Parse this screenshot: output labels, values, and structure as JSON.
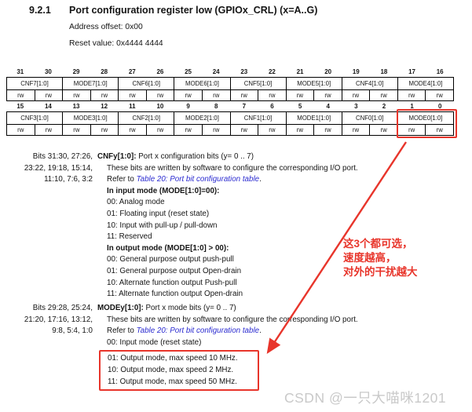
{
  "page": {
    "section_number": "9.2.1",
    "title": "Port configuration register low (GPIOx_CRL) (x=A..G)",
    "address_offset": "Address offset: 0x00",
    "reset_value": "Reset value: 0x4444 4444"
  },
  "colors": {
    "annotation_red": "#e8352b",
    "link_blue": "#2b2bd0",
    "watermark_gray": "#c9c9c9"
  },
  "register_table": {
    "rows": [
      {
        "bits": [
          "31",
          "30",
          "29",
          "28",
          "27",
          "26",
          "25",
          "24",
          "23",
          "22",
          "21",
          "20",
          "19",
          "18",
          "17",
          "16"
        ],
        "fields": [
          "CNF7[1:0]",
          "MODE7[1:0]",
          "CNF6[1:0]",
          "MODE6[1:0]",
          "CNF5[1:0]",
          "MODE5[1:0]",
          "CNF4[1:0]",
          "MODE4[1:0]"
        ],
        "access": [
          "rw",
          "rw",
          "rw",
          "rw",
          "rw",
          "rw",
          "rw",
          "rw",
          "rw",
          "rw",
          "rw",
          "rw",
          "rw",
          "rw",
          "rw",
          "rw"
        ],
        "highlight_field": null
      },
      {
        "bits": [
          "15",
          "14",
          "13",
          "12",
          "11",
          "10",
          "9",
          "8",
          "7",
          "6",
          "5",
          "4",
          "3",
          "2",
          "1",
          "0"
        ],
        "fields": [
          "CNF3[1:0]",
          "MODE3[1:0]",
          "CNF2[1:0]",
          "MODE2[1:0]",
          "CNF1[1:0]",
          "MODE1[1:0]",
          "CNF0[1:0]",
          "MODE0[1:0]"
        ],
        "access": [
          "rw",
          "rw",
          "rw",
          "rw",
          "rw",
          "rw",
          "rw",
          "rw",
          "rw",
          "rw",
          "rw",
          "rw",
          "rw",
          "rw",
          "rw",
          "rw"
        ],
        "highlight_field": 7
      }
    ]
  },
  "descriptions": [
    {
      "bits_label": [
        "Bits 31:30, 27:26,",
        "23:22, 19:18, 15:14,",
        "11:10, 7:6, 3:2"
      ],
      "lines": [
        {
          "indent": 0,
          "parts": [
            {
              "t": "CNFy[1:0]:",
              "s": "b"
            },
            {
              "t": " Port x configuration bits (y= 0 .. 7)",
              "s": "n"
            }
          ]
        },
        {
          "indent": 1,
          "parts": [
            {
              "t": "These bits are written by software to configure the corresponding I/O port.",
              "s": "n"
            }
          ]
        },
        {
          "indent": 1,
          "parts": [
            {
              "t": "Refer to ",
              "s": "n"
            },
            {
              "t": "Table 20: Port bit configuration table",
              "s": "l"
            },
            {
              "t": ".",
              "s": "n"
            }
          ]
        },
        {
          "indent": 1,
          "parts": [
            {
              "t": "In input mode (MODE[1:0]=00):",
              "s": "b"
            }
          ]
        },
        {
          "indent": 1,
          "parts": [
            {
              "t": "00: Analog mode",
              "s": "n"
            }
          ]
        },
        {
          "indent": 1,
          "parts": [
            {
              "t": "01: Floating input (reset state)",
              "s": "n"
            }
          ]
        },
        {
          "indent": 1,
          "parts": [
            {
              "t": "10: Input with pull-up / pull-down",
              "s": "n"
            }
          ]
        },
        {
          "indent": 1,
          "parts": [
            {
              "t": "11: Reserved",
              "s": "n"
            }
          ]
        },
        {
          "indent": 1,
          "parts": [
            {
              "t": "In output mode (MODE[1:0] > 00):",
              "s": "b"
            }
          ]
        },
        {
          "indent": 1,
          "parts": [
            {
              "t": "00: General purpose output push-pull",
              "s": "n"
            }
          ]
        },
        {
          "indent": 1,
          "parts": [
            {
              "t": "01: General purpose output Open-drain",
              "s": "n"
            }
          ]
        },
        {
          "indent": 1,
          "parts": [
            {
              "t": "10: Alternate function output Push-pull",
              "s": "n"
            }
          ]
        },
        {
          "indent": 1,
          "parts": [
            {
              "t": "11: Alternate function output Open-drain",
              "s": "n"
            }
          ]
        }
      ],
      "boxed": null
    },
    {
      "bits_label": [
        "Bits 29:28, 25:24,",
        "21:20, 17:16, 13:12,",
        "9:8, 5:4, 1:0"
      ],
      "lines": [
        {
          "indent": 0,
          "parts": [
            {
              "t": "MODEy[1:0]:",
              "s": "b"
            },
            {
              "t": " Port x mode bits (y= 0 .. 7)",
              "s": "n"
            }
          ]
        },
        {
          "indent": 1,
          "parts": [
            {
              "t": "These bits are written by software to configure the corresponding I/O port.",
              "s": "n"
            }
          ]
        },
        {
          "indent": 1,
          "parts": [
            {
              "t": "Refer to ",
              "s": "n"
            },
            {
              "t": "Table 20: Port bit configuration table",
              "s": "l"
            },
            {
              "t": ".",
              "s": "n"
            }
          ]
        },
        {
          "indent": 1,
          "parts": [
            {
              "t": "00: Input mode (reset state)",
              "s": "n"
            }
          ]
        },
        {
          "indent": 1,
          "parts": [
            {
              "t": "01: Output mode, max speed 10 MHz.",
              "s": "n"
            }
          ]
        },
        {
          "indent": 1,
          "parts": [
            {
              "t": "10: Output mode, max speed 2 MHz.",
              "s": "n"
            }
          ]
        },
        {
          "indent": 1,
          "parts": [
            {
              "t": "11: Output mode, max speed 50 MHz.",
              "s": "n"
            }
          ]
        }
      ],
      "boxed": {
        "start": 4,
        "count": 3
      }
    }
  ],
  "annotation": {
    "lines": [
      "这3个都可选，",
      "速度越高，",
      "对外的干扰越大"
    ]
  },
  "watermark": {
    "text": "CSDN @一只大喵咪1201"
  }
}
